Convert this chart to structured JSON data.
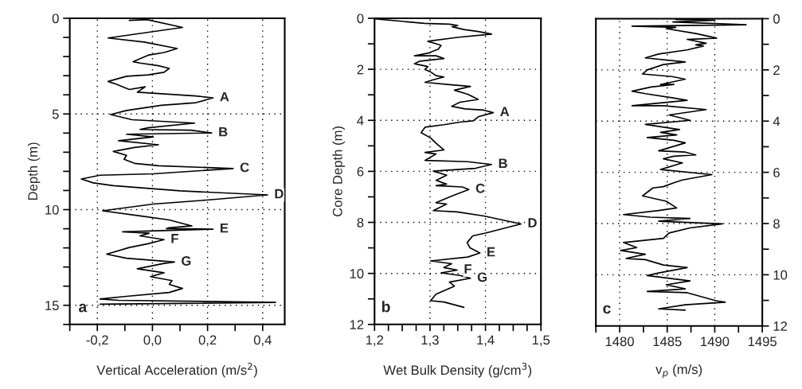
{
  "chart_data": [
    {
      "type": "line",
      "xlabel": "Vertical Acceleration (m/s$^{2}$)",
      "ylabel": "Depth (m)",
      "grid": true,
      "xlim": [
        -0.3,
        0.48
      ],
      "xticks": [
        {
          "value": -0.3,
          "label": null
        },
        {
          "value": -0.2,
          "label": "-0,2"
        },
        {
          "value": -0.1,
          "label": null
        },
        {
          "value": 0,
          "label": "0,0"
        },
        {
          "value": 0.1,
          "label": null
        },
        {
          "value": 0.2,
          "label": "0,2"
        },
        {
          "value": 0.3,
          "label": null
        },
        {
          "value": 0.4,
          "label": "0,4"
        }
      ],
      "ylim": [
        16,
        0
      ],
      "yticks": [
        0,
        {
          "value": 1,
          "label": null
        },
        {
          "value": 2,
          "label": null
        },
        {
          "value": 3,
          "label": null
        },
        {
          "value": 4,
          "label": null
        },
        5,
        {
          "value": 6,
          "label": null
        },
        {
          "value": 7,
          "label": null
        },
        {
          "value": 8,
          "label": null
        },
        {
          "value": 9,
          "label": null
        },
        10,
        {
          "value": 11,
          "label": null
        },
        {
          "value": 12,
          "label": null
        },
        {
          "value": 13,
          "label": null
        },
        {
          "value": 14,
          "label": null
        },
        15,
        {
          "value": 16,
          "label": null
        }
      ],
      "series": [
        {
          "color": "#000000",
          "x": [
            -0.084,
            -0.02,
            0.109,
            -0.161,
            -0.03,
            0.09,
            0.042,
            -0.016,
            -0.07,
            -0.045,
            0.022,
            0.061,
            0.042,
            -0.016,
            -0.094,
            -0.161,
            -0.132,
            -0.084,
            -0.026,
            -0.055,
            0.157,
            0.22,
            0.158,
            0.032,
            -0.094,
            -0.152,
            -0.074,
            0.153,
            -0.016,
            -0.045,
            0.138,
            0.215,
            -0.094,
            0.003,
            -0.123,
            0.022,
            -0.065,
            -0.142,
            -0.094,
            -0.103,
            -0.065,
            0.022,
            0.293,
            0.003,
            -0.19,
            -0.258,
            -0.215,
            -0.142,
            0.1,
            0.418,
            0.196,
            0.003,
            -0.181,
            -0.045,
            0.061,
            0.143,
            0.061,
            0.051,
            0.22,
            -0.108,
            -0.012,
            -0.045,
            0.042,
            -0.016,
            -0.084,
            -0.166,
            -0.094,
            0.08,
            0.042,
            -0.055,
            0.042,
            -0.007,
            0.071,
            0.061,
            0.109,
            0.061,
            -0.094,
            -0.19,
            -0.123,
            0.447,
            -0.19
          ],
          "values": [
            0.11,
            0.07,
            0.48,
            1.03,
            1.24,
            1.58,
            1.79,
            1.93,
            2.27,
            2.34,
            2.48,
            2.62,
            2.82,
            2.96,
            3.03,
            3.3,
            3.44,
            3.72,
            3.58,
            3.86,
            4.06,
            4.16,
            4.41,
            4.55,
            4.82,
            5.03,
            5.3,
            5.48,
            5.72,
            5.81,
            5.85,
            5.99,
            6.06,
            6.2,
            6.4,
            6.61,
            6.75,
            6.96,
            7.16,
            7.37,
            7.58,
            7.71,
            7.85,
            8.13,
            8.2,
            8.4,
            8.6,
            8.75,
            9.02,
            9.23,
            9.5,
            9.71,
            10.06,
            10.33,
            10.54,
            10.85,
            10.95,
            10.99,
            11.02,
            11.16,
            11.23,
            11.37,
            11.57,
            11.78,
            11.98,
            12.33,
            12.54,
            12.74,
            12.81,
            13.09,
            13.3,
            13.5,
            13.71,
            13.91,
            14.12,
            14.33,
            14.53,
            14.67,
            14.74,
            14.85,
            14.94
          ]
        }
      ],
      "annotations": [
        {
          "text": "A",
          "x": 0.22,
          "y": 4.16
        },
        {
          "text": "B",
          "x": 0.215,
          "y": 5.99
        },
        {
          "text": "C",
          "x": 0.293,
          "y": 7.85
        },
        {
          "text": "D",
          "x": 0.418,
          "y": 9.23
        },
        {
          "text": "E",
          "x": 0.22,
          "y": 11.02
        },
        {
          "text": "F",
          "x": 0.042,
          "y": 11.57
        },
        {
          "text": "G",
          "x": 0.08,
          "y": 12.74
        },
        "a"
      ]
    },
    {
      "type": "line",
      "xlabel": "Wet Bulk Density (g/cm$^{3}$)",
      "ylabel": "Core Depth (m)",
      "grid": true,
      "xlim": [
        1.2,
        1.5
      ],
      "xticks": [
        {
          "value": 1.2,
          "label": "1,2"
        },
        {
          "value": 1.225,
          "label": null
        },
        {
          "value": 1.25,
          "label": null
        },
        {
          "value": 1.275,
          "label": null
        },
        {
          "value": 1.3,
          "label": "1,3"
        },
        {
          "value": 1.325,
          "label": null
        },
        {
          "value": 1.35,
          "label": null
        },
        {
          "value": 1.375,
          "label": null
        },
        {
          "value": 1.4,
          "label": "1,4"
        },
        {
          "value": 1.425,
          "label": null
        },
        {
          "value": 1.45,
          "label": null
        },
        {
          "value": 1.475,
          "label": null
        },
        {
          "value": 1.5,
          "label": "1,5"
        }
      ],
      "ylim": [
        12,
        0
      ],
      "yticks": [
        0,
        {
          "value": 1,
          "label": null
        },
        2,
        {
          "value": 3,
          "label": null
        },
        4,
        {
          "value": 5,
          "label": null
        },
        6,
        {
          "value": 7,
          "label": null
        },
        8,
        {
          "value": 9,
          "label": null
        },
        10,
        {
          "value": 11,
          "label": null
        },
        12
      ],
      "series": [
        {
          "color": "#000000",
          "x": [
            1.2,
            1.29,
            1.335,
            1.35,
            1.34,
            1.361,
            1.387,
            1.411,
            1.349,
            1.296,
            1.311,
            1.32,
            1.315,
            1.296,
            1.272,
            1.311,
            1.325,
            1.282,
            1.272,
            1.296,
            1.291,
            1.301,
            1.311,
            1.325,
            1.306,
            1.291,
            1.339,
            1.373,
            1.344,
            1.368,
            1.387,
            1.354,
            1.339,
            1.363,
            1.397,
            1.414,
            1.387,
            1.378,
            1.354,
            1.325,
            1.291,
            1.284,
            1.301,
            1.311,
            1.325,
            1.291,
            1.311,
            1.291,
            1.368,
            1.411,
            1.382,
            1.306,
            1.33,
            1.311,
            1.33,
            1.311,
            1.358,
            1.37,
            1.339,
            1.311,
            1.33,
            1.306,
            1.349,
            1.397,
            1.464,
            1.4,
            1.377,
            1.367,
            1.372,
            1.39,
            1.368,
            1.301,
            1.339,
            1.325,
            1.349,
            1.32,
            1.354,
            1.373,
            1.335,
            1.344,
            1.311,
            1.301,
            1.325,
            1.344,
            1.361
          ],
          "values": [
            0.02,
            0.2,
            0.23,
            0.28,
            0.33,
            0.44,
            0.52,
            0.62,
            0.75,
            0.9,
            1.0,
            1.06,
            1.21,
            1.37,
            1.47,
            1.47,
            1.58,
            1.68,
            1.78,
            1.89,
            2.01,
            2.1,
            2.25,
            2.3,
            2.41,
            2.51,
            2.61,
            2.67,
            2.82,
            2.98,
            3.18,
            3.29,
            3.45,
            3.55,
            3.6,
            3.7,
            3.86,
            4.02,
            4.07,
            4.17,
            4.27,
            4.48,
            4.69,
            4.9,
            5.16,
            5.26,
            5.32,
            5.57,
            5.62,
            5.73,
            5.88,
            5.99,
            6.15,
            6.35,
            6.5,
            6.56,
            6.61,
            6.71,
            6.97,
            7.23,
            7.28,
            7.54,
            7.59,
            7.75,
            8.06,
            8.42,
            8.53,
            8.79,
            9.0,
            9.2,
            9.36,
            9.51,
            9.62,
            9.77,
            9.87,
            9.98,
            10.08,
            10.19,
            10.34,
            10.5,
            10.81,
            11.07,
            11.12,
            11.23,
            11.33
          ]
        }
      ],
      "annotations": [
        {
          "text": "A",
          "x": 1.414,
          "y": 3.7
        },
        {
          "text": "B",
          "x": 1.411,
          "y": 5.73
        },
        {
          "text": "C",
          "x": 1.37,
          "y": 6.71
        },
        {
          "text": "D",
          "x": 1.464,
          "y": 8.06
        },
        {
          "text": "E",
          "x": 1.39,
          "y": 9.2
        },
        {
          "text": "F",
          "x": 1.349,
          "y": 9.87
        },
        {
          "text": "G",
          "x": 1.373,
          "y": 10.19
        },
        "b"
      ]
    },
    {
      "type": "line",
      "xlabel": "v$_{p}$ (m/s)",
      "grid": true,
      "xlim": [
        1477.5,
        1495
      ],
      "xticks": [
        {
          "value": 1477.5,
          "label": null
        },
        1480,
        {
          "value": 1482.5,
          "label": null
        },
        1485,
        {
          "value": 1487.5,
          "label": null
        },
        1490,
        {
          "value": 1492.5,
          "label": null
        },
        1495
      ],
      "ylim": [
        12,
        0
      ],
      "yticks": [
        0,
        {
          "value": 1,
          "label": null
        },
        2,
        {
          "value": 3,
          "label": null
        },
        4,
        {
          "value": 5,
          "label": null
        },
        6,
        {
          "value": 7,
          "label": null
        },
        8,
        {
          "value": 9,
          "label": null
        },
        10,
        {
          "value": 11,
          "label": null
        },
        12
      ],
      "series": [
        {
          "color": "#000000",
          "x": [
            1485.9,
            1490.0,
            1485.6,
            1493.3,
            1481.3,
            1485.9,
            1484.9,
            1488.0,
            1490.2,
            1487.1,
            1489.1,
            1488.0,
            1488.8,
            1487.1,
            1484.1,
            1482.7,
            1486.9,
            1484.6,
            1482.9,
            1482.4,
            1485.5,
            1486.9,
            1484.3,
            1485.7,
            1483.3,
            1481.3,
            1482.7,
            1485.5,
            1487.1,
            1481.3,
            1484.6,
            1489.1,
            1485.2,
            1487.4,
            1482.7,
            1486.3,
            1484.3,
            1486.0,
            1482.9,
            1485.7,
            1486.9,
            1484.1,
            1486.9,
            1488.0,
            1485.7,
            1484.6,
            1486.6,
            1484.3,
            1489.7,
            1486.6,
            1485.7,
            1484.6,
            1483.5,
            1482.4,
            1484.9,
            1486.0,
            1484.1,
            1480.4,
            1483.2,
            1487.4,
            1484.1,
            1490.8,
            1487.4,
            1485.2,
            1484.6,
            1480.4,
            1481.8,
            1480.1,
            1482.7,
            1480.7,
            1482.7,
            1484.6,
            1487.1,
            1484.1,
            1482.9,
            1487.4,
            1484.9,
            1486.9,
            1482.9,
            1487.1,
            1490.2,
            1491.1,
            1486.9,
            1484.1,
            1486.9
          ],
          "values": [
            0.03,
            0.06,
            0.13,
            0.24,
            0.29,
            0.34,
            0.39,
            0.58,
            0.76,
            0.81,
            0.96,
            1.02,
            1.07,
            1.22,
            1.38,
            1.53,
            1.69,
            1.79,
            2.0,
            2.16,
            2.26,
            2.36,
            2.57,
            2.57,
            2.67,
            2.83,
            2.93,
            3.09,
            3.19,
            3.4,
            3.4,
            3.55,
            3.76,
            3.97,
            4.13,
            4.33,
            4.44,
            4.54,
            4.64,
            4.75,
            4.85,
            5.16,
            5.21,
            5.32,
            5.37,
            5.47,
            5.63,
            5.89,
            6.09,
            6.3,
            6.41,
            6.56,
            6.61,
            6.92,
            7.13,
            7.39,
            7.49,
            7.65,
            7.75,
            7.8,
            7.91,
            8.01,
            8.17,
            8.37,
            8.58,
            8.74,
            8.94,
            9.05,
            9.2,
            9.36,
            9.41,
            9.62,
            9.72,
            9.93,
            10.03,
            10.24,
            10.39,
            10.55,
            10.65,
            10.7,
            11.02,
            11.07,
            11.17,
            11.33,
            11.38
          ]
        }
      ],
      "annotations": [
        "c"
      ]
    }
  ]
}
